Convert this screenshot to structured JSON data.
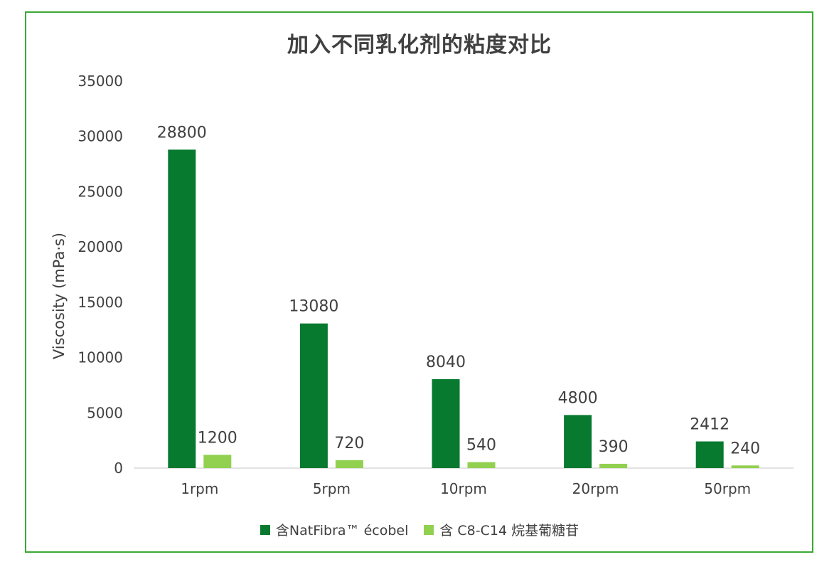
{
  "chart_data": {
    "type": "bar",
    "title": "加入不同乳化剂的粘度对比",
    "xlabel": "",
    "ylabel": "Viscosity (mPa·s)",
    "ylim": [
      0,
      35000
    ],
    "yticks": [
      0,
      5000,
      10000,
      15000,
      20000,
      25000,
      30000,
      35000
    ],
    "categories": [
      "1rpm",
      "5rpm",
      "10rpm",
      "20rpm",
      "50rpm"
    ],
    "series": [
      {
        "name": "含NatFibra™ écobel",
        "color": "#077a2f",
        "values": [
          28800,
          13080,
          8040,
          4800,
          2412
        ]
      },
      {
        "name": "含 C8-C14 烷基葡糖苷",
        "color": "#92d050",
        "values": [
          1200,
          720,
          540,
          390,
          240
        ]
      }
    ],
    "grid": false,
    "legend": "bottom",
    "data_labels": true
  },
  "colors": {
    "frame": "#3aa935",
    "text": "#404040",
    "axis": "#d9d9d9"
  }
}
